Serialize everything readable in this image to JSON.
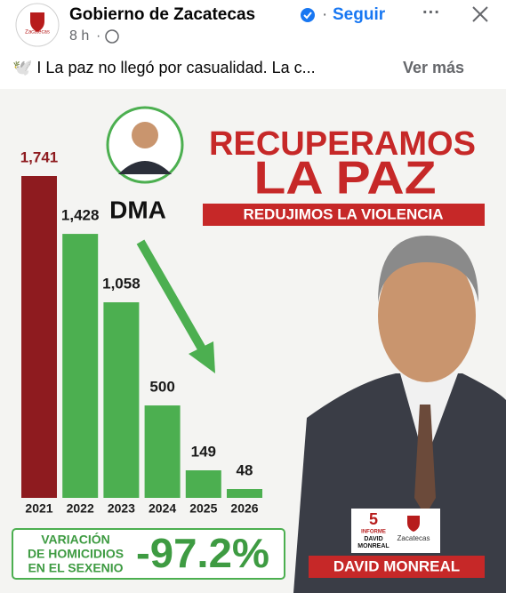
{
  "header": {
    "account": "Gobierno de Zacatecas",
    "follow": "Seguir",
    "time": "8 h",
    "logo_text": "Zacatecas"
  },
  "post_text": {
    "text": "🕊️ I La paz no llegó por casualidad. La c...",
    "more": "Ver más"
  },
  "graphic": {
    "headline": [
      "RECUPERAMOS",
      "LA PAZ"
    ],
    "subheadline": "REDUJIMOS LA VIOLENCIA",
    "badge": "DMA",
    "variation_label": [
      "VARIACIÓN",
      "DE HOMICIDIOS",
      "EN EL SEXENIO"
    ],
    "variation_value": "-97.2%",
    "name_banner": "DAVID MONREAL",
    "informe_logo": [
      "5",
      "INFORME",
      "DAVID",
      "MONREAL"
    ],
    "state_logo": "Zacatecas"
  },
  "chart_data": {
    "type": "bar",
    "categories": [
      "2021",
      "2022",
      "2023",
      "2024",
      "2025",
      "2026"
    ],
    "values": [
      1741,
      1428,
      1058,
      500,
      149,
      48
    ],
    "value_labels": [
      "1,741",
      "1,428",
      "1,058",
      "500",
      "149",
      "48"
    ],
    "colors": [
      "#8e1b1f",
      "#4caf50",
      "#4caf50",
      "#4caf50",
      "#4caf50",
      "#4caf50"
    ]
  }
}
